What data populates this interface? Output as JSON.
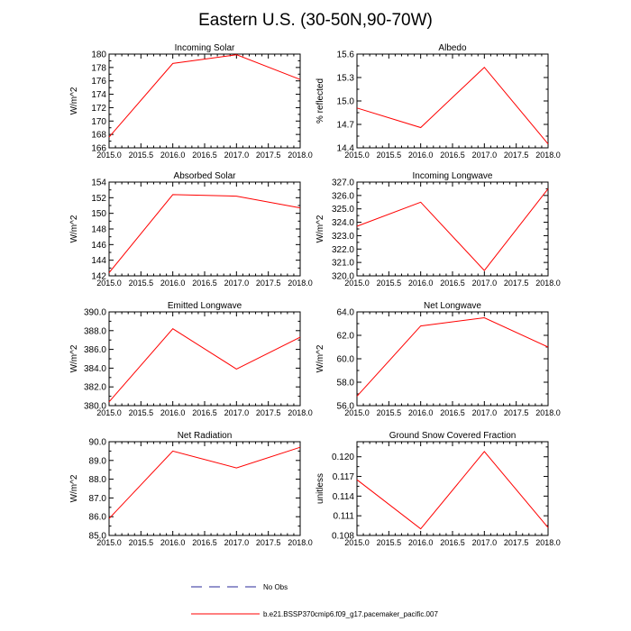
{
  "figure": {
    "title": "Eastern U.S. (30-50N,90-70W)",
    "legend": [
      {
        "label": "No Obs",
        "color": "#2a2a9a",
        "style": "dashed"
      },
      {
        "label": "b.e21.BSSP370cmip6.f09_g17.pacemaker_pacific.007",
        "color": "#ff0000",
        "style": "solid"
      }
    ]
  },
  "chart_data": [
    {
      "type": "line",
      "title": "Incoming Solar",
      "xlabel": "",
      "ylabel": "W/m^2",
      "x": [
        2015,
        2016,
        2017,
        2018
      ],
      "values": [
        167.6,
        178.6,
        179.9,
        176.2
      ],
      "xlim": [
        2015,
        2018
      ],
      "ylim": [
        166,
        180
      ],
      "xticks": [
        "2015.0",
        "2015.5",
        "2016.0",
        "2016.5",
        "2017.0",
        "2017.5",
        "2018.0"
      ],
      "yticks": [
        "166",
        "168",
        "170",
        "172",
        "174",
        "176",
        "178",
        "180"
      ],
      "color": "#ff0000"
    },
    {
      "type": "line",
      "title": "Albedo",
      "xlabel": "",
      "ylabel": "% reflected",
      "x": [
        2015,
        2016,
        2017,
        2018
      ],
      "values": [
        14.91,
        14.66,
        15.43,
        14.45
      ],
      "xlim": [
        2015,
        2018
      ],
      "ylim": [
        14.4,
        15.6
      ],
      "xticks": [
        "2015.0",
        "2015.5",
        "2016.0",
        "2016.5",
        "2017.0",
        "2017.5",
        "2018.0"
      ],
      "yticks": [
        "14.4",
        "14.7",
        "15.0",
        "15.3",
        "15.6"
      ],
      "color": "#ff0000"
    },
    {
      "type": "line",
      "title": "Absorbed Solar",
      "xlabel": "",
      "ylabel": "W/m^2",
      "x": [
        2015,
        2016,
        2017,
        2018
      ],
      "values": [
        142.4,
        152.4,
        152.2,
        150.7
      ],
      "xlim": [
        2015,
        2018
      ],
      "ylim": [
        142,
        154
      ],
      "xticks": [
        "2015.0",
        "2015.5",
        "2016.0",
        "2016.5",
        "2017.0",
        "2017.5",
        "2018.0"
      ],
      "yticks": [
        "142",
        "144",
        "146",
        "148",
        "150",
        "152",
        "154"
      ],
      "color": "#ff0000"
    },
    {
      "type": "line",
      "title": "Incoming Longwave",
      "xlabel": "",
      "ylabel": "W/m^2",
      "x": [
        2015,
        2016,
        2017,
        2018
      ],
      "values": [
        323.7,
        325.5,
        320.4,
        326.5
      ],
      "xlim": [
        2015,
        2018
      ],
      "ylim": [
        320.0,
        327.0
      ],
      "xticks": [
        "2015.0",
        "2015.5",
        "2016.0",
        "2016.5",
        "2017.0",
        "2017.5",
        "2018.0"
      ],
      "yticks": [
        "320.0",
        "321.0",
        "322.0",
        "323.0",
        "324.0",
        "325.0",
        "326.0",
        "327.0"
      ],
      "color": "#ff0000"
    },
    {
      "type": "line",
      "title": "Emitted Longwave",
      "xlabel": "",
      "ylabel": "W/m^2",
      "x": [
        2015,
        2016,
        2017,
        2018
      ],
      "values": [
        380.4,
        388.2,
        383.9,
        387.3
      ],
      "xlim": [
        2015,
        2018
      ],
      "ylim": [
        380.0,
        390.0
      ],
      "xticks": [
        "2015.0",
        "2015.5",
        "2016.0",
        "2016.5",
        "2017.0",
        "2017.5",
        "2018.0"
      ],
      "yticks": [
        "380.0",
        "382.0",
        "384.0",
        "386.0",
        "388.0",
        "390.0"
      ],
      "color": "#ff0000"
    },
    {
      "type": "line",
      "title": "Net Longwave",
      "xlabel": "",
      "ylabel": "W/m^2",
      "x": [
        2015,
        2016,
        2017,
        2018
      ],
      "values": [
        56.8,
        62.8,
        63.5,
        61.0
      ],
      "xlim": [
        2015,
        2018
      ],
      "ylim": [
        56.0,
        64.0
      ],
      "xticks": [
        "2015.0",
        "2015.5",
        "2016.0",
        "2016.5",
        "2017.0",
        "2017.5",
        "2018.0"
      ],
      "yticks": [
        "56.0",
        "58.0",
        "60.0",
        "62.0",
        "64.0"
      ],
      "color": "#ff0000"
    },
    {
      "type": "line",
      "title": "Net Radiation",
      "xlabel": "",
      "ylabel": "W/m^2",
      "x": [
        2015,
        2016,
        2017,
        2018
      ],
      "values": [
        85.9,
        89.5,
        88.6,
        89.7
      ],
      "xlim": [
        2015,
        2018
      ],
      "ylim": [
        85.0,
        90.0
      ],
      "xticks": [
        "2015.0",
        "2015.5",
        "2016.0",
        "2016.5",
        "2017.0",
        "2017.5",
        "2018.0"
      ],
      "yticks": [
        "85.0",
        "86.0",
        "87.0",
        "88.0",
        "89.0",
        "90.0"
      ],
      "color": "#ff0000"
    },
    {
      "type": "line",
      "title": "Ground Snow Covered Fraction",
      "xlabel": "",
      "ylabel": "unitless",
      "x": [
        2015,
        2016,
        2017,
        2018
      ],
      "values": [
        0.1165,
        0.109,
        0.1208,
        0.1092
      ],
      "xlim": [
        2015,
        2018
      ],
      "ylim": [
        0.108,
        0.1223
      ],
      "xticks": [
        "2015.0",
        "2015.5",
        "2016.0",
        "2016.5",
        "2017.0",
        "2017.5",
        "2018.0"
      ],
      "yticks": [
        "0.108",
        "0.111",
        "0.114",
        "0.117",
        "0.120"
      ],
      "color": "#ff0000"
    }
  ]
}
